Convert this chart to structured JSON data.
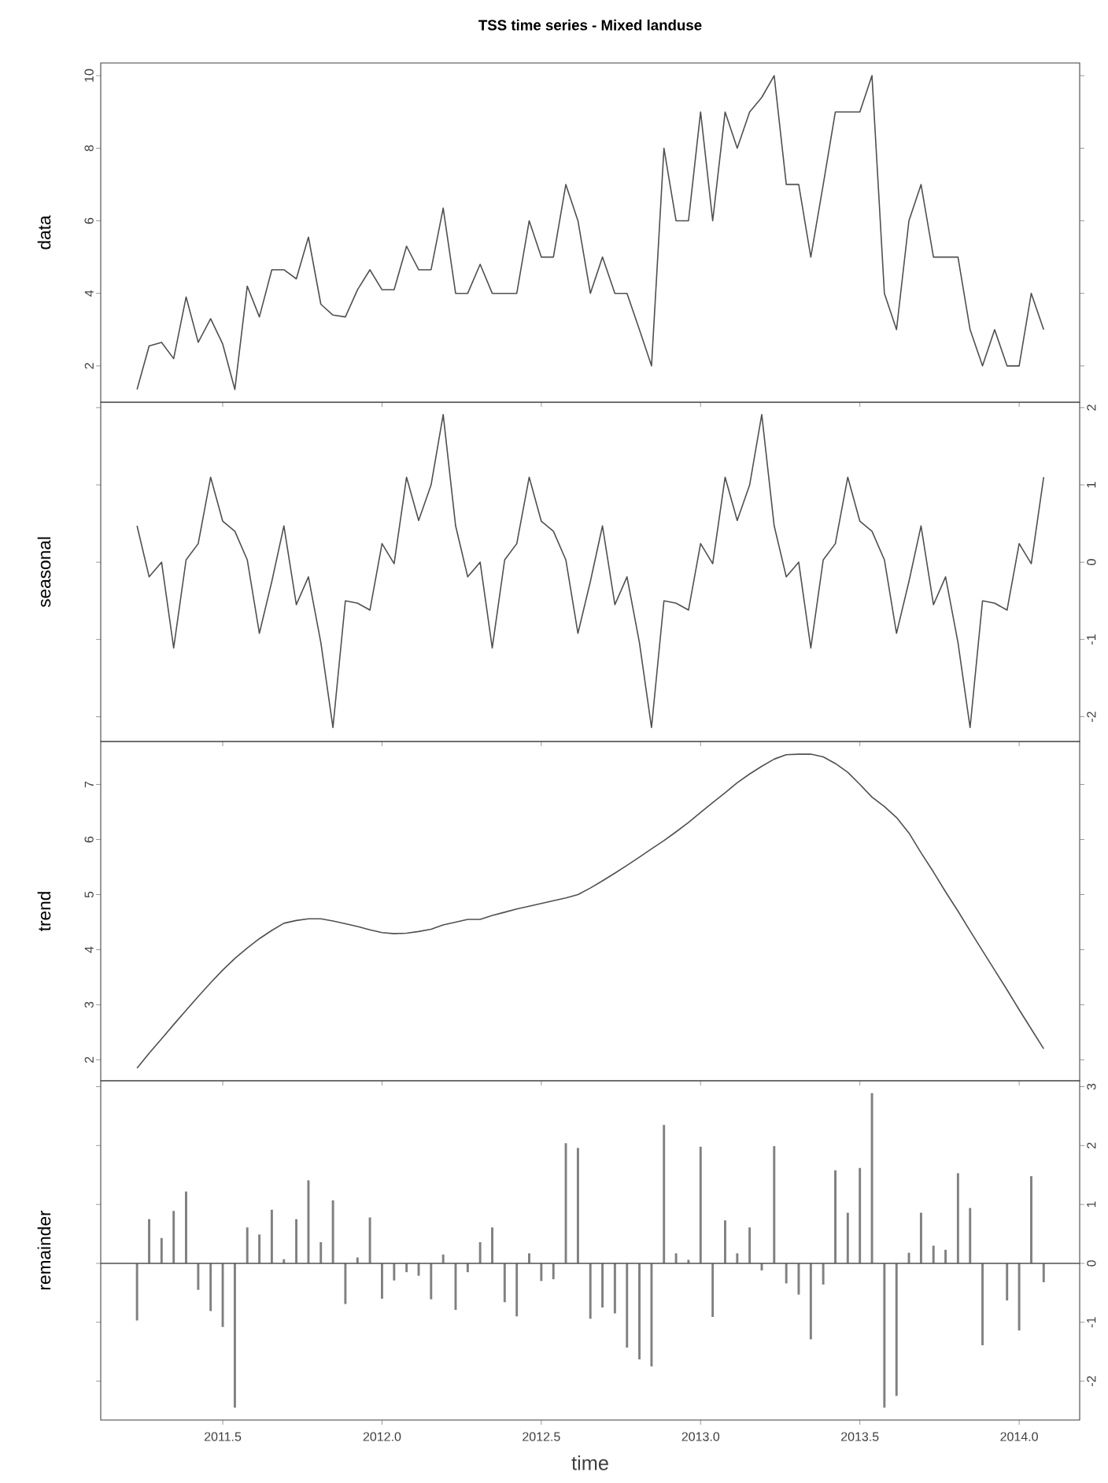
{
  "chart_data": [
    {
      "type": "line",
      "title": "TSS time series - Mixed landuse",
      "ylabel": "data",
      "color": "#505050",
      "tick_labels": "y",
      "xlim": [
        2011.117,
        2014.19
      ],
      "xticks": [
        2011.5,
        2012,
        2012.5,
        2013,
        2013.5,
        2014
      ],
      "ylim": [
        1.0,
        10.35
      ],
      "yticks": [
        2,
        4,
        6,
        8,
        10
      ],
      "x": [
        2011.231,
        2011.269,
        2011.308,
        2011.346,
        2011.385,
        2011.423,
        2011.462,
        2011.5,
        2011.538,
        2011.577,
        2011.615,
        2011.654,
        2011.692,
        2011.731,
        2011.769,
        2011.808,
        2011.846,
        2011.885,
        2011.923,
        2011.962,
        2012.0,
        2012.038,
        2012.077,
        2012.115,
        2012.154,
        2012.192,
        2012.231,
        2012.269,
        2012.308,
        2012.346,
        2012.385,
        2012.423,
        2012.462,
        2012.5,
        2012.538,
        2012.577,
        2012.615,
        2012.654,
        2012.692,
        2012.731,
        2012.769,
        2012.808,
        2012.846,
        2012.885,
        2012.923,
        2012.962,
        2013.0,
        2013.038,
        2013.077,
        2013.115,
        2013.154,
        2013.192,
        2013.231,
        2013.269,
        2013.308,
        2013.346,
        2013.385,
        2013.423,
        2013.462,
        2013.5,
        2013.538,
        2013.577,
        2013.615,
        2013.654,
        2013.692,
        2013.731,
        2013.769,
        2013.808,
        2013.846,
        2013.885,
        2013.923,
        2013.962,
        2014.0,
        2014.038,
        2014.077
      ],
      "values": [
        1.35,
        2.55,
        2.65,
        2.2,
        3.9,
        2.65,
        3.3,
        2.6,
        1.35,
        4.2,
        3.35,
        4.65,
        4.65,
        4.4,
        5.55,
        3.7,
        3.4,
        3.35,
        4.1,
        4.65,
        4.1,
        4.1,
        5.3,
        4.65,
        4.65,
        6.35,
        4.0,
        4.0,
        4.8,
        4.0,
        4.0,
        4.0,
        6.0,
        5.0,
        5.0,
        7.0,
        6.0,
        4.0,
        5.0,
        4.0,
        4.0,
        3.0,
        2.0,
        8.0,
        6.0,
        6.0,
        9.0,
        6.0,
        9.0,
        8.0,
        9.0,
        9.4,
        10.0,
        7.0,
        7.0,
        5.0,
        7.0,
        9.0,
        9.0,
        9.0,
        10.0,
        4.0,
        3.0,
        6.0,
        7.0,
        5.0,
        5.0,
        5.0,
        3.0,
        2.0,
        3.0,
        2.0,
        2.0,
        4.0,
        3.0
      ]
    },
    {
      "type": "line",
      "ylabel": "seasonal",
      "color": "#505050",
      "tick_labels": "y",
      "xlim": [
        2011.117,
        2014.19
      ],
      "xticks": [
        2011.5,
        2012,
        2012.5,
        2013,
        2013.5,
        2014
      ],
      "ylim": [
        -2.32,
        2.07
      ],
      "yticks": [
        -2,
        -1,
        0,
        1,
        2
      ],
      "x": [
        2011.231,
        2011.269,
        2011.308,
        2011.346,
        2011.385,
        2011.423,
        2011.462,
        2011.5,
        2011.538,
        2011.577,
        2011.615,
        2011.654,
        2011.692,
        2011.731,
        2011.769,
        2011.808,
        2011.846,
        2011.885,
        2011.923,
        2011.962,
        2012.0,
        2012.038,
        2012.077,
        2012.115,
        2012.154,
        2012.192,
        2012.231,
        2012.269,
        2012.308,
        2012.346,
        2012.385,
        2012.423,
        2012.462,
        2012.5,
        2012.538,
        2012.577,
        2012.615,
        2012.654,
        2012.692,
        2012.731,
        2012.769,
        2012.808,
        2012.846,
        2012.885,
        2012.923,
        2012.962,
        2013.0,
        2013.038,
        2013.077,
        2013.115,
        2013.154,
        2013.192,
        2013.231,
        2013.269,
        2013.308,
        2013.346,
        2013.385,
        2013.423,
        2013.462,
        2013.5,
        2013.538,
        2013.577,
        2013.615,
        2013.654,
        2013.692,
        2013.731,
        2013.769,
        2013.808,
        2013.846,
        2013.885,
        2013.923,
        2013.962,
        2014.0,
        2014.038,
        2014.077
      ],
      "values": [
        0.47,
        -0.19,
        0.0,
        -1.11,
        0.03,
        0.24,
        1.1,
        0.53,
        0.4,
        0.03,
        -0.92,
        -0.25,
        0.47,
        -0.55,
        -0.19,
        -1.04,
        -2.14,
        -0.5,
        -0.53,
        -0.62,
        0.24,
        -0.02,
        1.1,
        0.54,
        1.0,
        1.91,
        0.47,
        -0.19,
        0.0,
        -1.11,
        0.03,
        0.24,
        1.1,
        0.53,
        0.4,
        0.03,
        -0.92,
        -0.25,
        0.47,
        -0.55,
        -0.19,
        -1.04,
        -2.14,
        -0.5,
        -0.53,
        -0.62,
        0.24,
        -0.02,
        1.1,
        0.54,
        1.0,
        1.91,
        0.47,
        -0.19,
        0.0,
        -1.11,
        0.03,
        0.24,
        1.1,
        0.53,
        0.4,
        0.03,
        -0.92,
        -0.25,
        0.47,
        -0.55,
        -0.19,
        -1.04,
        -2.14,
        -0.5,
        -0.53,
        -0.62,
        0.24,
        -0.02,
        1.1
      ]
    },
    {
      "type": "line",
      "ylabel": "trend",
      "color": "#505050",
      "tick_labels": "y",
      "xlim": [
        2011.117,
        2014.19
      ],
      "xticks": [
        2011.5,
        2012,
        2012.5,
        2013,
        2013.5,
        2014
      ],
      "ylim": [
        1.62,
        7.78
      ],
      "yticks": [
        2,
        3,
        4,
        5,
        6,
        7
      ],
      "x": [
        2011.231,
        2011.269,
        2011.308,
        2011.346,
        2011.385,
        2011.423,
        2011.462,
        2011.5,
        2011.538,
        2011.577,
        2011.615,
        2011.654,
        2011.692,
        2011.731,
        2011.769,
        2011.808,
        2011.846,
        2011.885,
        2011.923,
        2011.962,
        2012.0,
        2012.038,
        2012.077,
        2012.115,
        2012.154,
        2012.192,
        2012.231,
        2012.269,
        2012.308,
        2012.346,
        2012.385,
        2012.423,
        2012.462,
        2012.5,
        2012.538,
        2012.577,
        2012.615,
        2012.654,
        2012.692,
        2012.731,
        2012.769,
        2012.808,
        2012.846,
        2012.885,
        2012.923,
        2012.962,
        2013.0,
        2013.038,
        2013.077,
        2013.115,
        2013.154,
        2013.192,
        2013.231,
        2013.269,
        2013.308,
        2013.346,
        2013.385,
        2013.423,
        2013.462,
        2013.5,
        2013.538,
        2013.577,
        2013.615,
        2013.654,
        2013.692,
        2013.731,
        2013.769,
        2013.808,
        2013.846,
        2013.885,
        2013.923,
        2013.962,
        2014.0,
        2014.038,
        2014.077
      ],
      "values": [
        1.85,
        2.12,
        2.38,
        2.64,
        2.9,
        3.15,
        3.4,
        3.63,
        3.84,
        4.03,
        4.2,
        4.35,
        4.48,
        4.53,
        4.56,
        4.56,
        4.52,
        4.47,
        4.42,
        4.36,
        4.31,
        4.29,
        4.3,
        4.33,
        4.37,
        4.45,
        4.5,
        4.55,
        4.55,
        4.62,
        4.68,
        4.74,
        4.79,
        4.84,
        4.89,
        4.94,
        5.0,
        5.12,
        5.25,
        5.39,
        5.53,
        5.68,
        5.83,
        5.98,
        6.14,
        6.31,
        6.49,
        6.67,
        6.85,
        7.03,
        7.19,
        7.33,
        7.46,
        7.54,
        7.55,
        7.55,
        7.5,
        7.38,
        7.22,
        7.0,
        6.77,
        6.6,
        6.4,
        6.12,
        5.76,
        5.41,
        5.05,
        4.7,
        4.34,
        3.98,
        3.63,
        3.27,
        2.91,
        2.56,
        2.2
      ]
    },
    {
      "type": "bar",
      "ylabel": "remainder",
      "xlabel": "time",
      "color": "#808080",
      "xlim": [
        2011.117,
        2014.19
      ],
      "xticks": [
        2011.5,
        {
          "value": 2012,
          "label": "2012.0"
        },
        2012.5,
        {
          "value": 2013,
          "label": "2013.0"
        },
        2013.5,
        {
          "value": 2014,
          "label": "2014.0"
        }
      ],
      "ylim": [
        -2.66,
        3.1
      ],
      "yticks": [
        -2,
        -1,
        0,
        1,
        2,
        3
      ],
      "ref_lines": [
        {
          "axis": "y",
          "value": 0,
          "color": "#505050"
        }
      ],
      "x": [
        2011.231,
        2011.269,
        2011.308,
        2011.346,
        2011.385,
        2011.423,
        2011.462,
        2011.5,
        2011.538,
        2011.577,
        2011.615,
        2011.654,
        2011.692,
        2011.731,
        2011.769,
        2011.808,
        2011.846,
        2011.885,
        2011.923,
        2011.962,
        2012.0,
        2012.038,
        2012.077,
        2012.115,
        2012.154,
        2012.192,
        2012.231,
        2012.269,
        2012.308,
        2012.346,
        2012.385,
        2012.423,
        2012.462,
        2012.5,
        2012.538,
        2012.577,
        2012.615,
        2012.654,
        2012.692,
        2012.731,
        2012.769,
        2012.808,
        2012.846,
        2012.885,
        2012.923,
        2012.962,
        2013.0,
        2013.038,
        2013.077,
        2013.115,
        2013.154,
        2013.192,
        2013.231,
        2013.269,
        2013.308,
        2013.346,
        2013.385,
        2013.423,
        2013.462,
        2013.5,
        2013.538,
        2013.577,
        2013.615,
        2013.654,
        2013.692,
        2013.731,
        2013.769,
        2013.808,
        2013.846,
        2013.885,
        2013.923,
        2013.962,
        2014.0,
        2014.038,
        2014.077
      ],
      "values": [
        -0.97,
        0.75,
        0.43,
        0.89,
        1.22,
        -0.45,
        -0.81,
        -1.08,
        -2.45,
        0.61,
        0.49,
        0.91,
        0.07,
        0.75,
        1.41,
        0.36,
        1.07,
        -0.69,
        0.1,
        0.78,
        -0.6,
        -0.29,
        -0.15,
        -0.21,
        -0.61,
        0.15,
        -0.79,
        -0.15,
        0.36,
        0.61,
        -0.66,
        -0.9,
        0.17,
        -0.3,
        -0.27,
        2.04,
        1.96,
        -0.94,
        -0.75,
        -0.85,
        -1.43,
        -1.63,
        -1.75,
        2.35,
        0.17,
        0.06,
        1.98,
        -0.91,
        0.73,
        0.17,
        0.61,
        -0.12,
        1.99,
        -0.34,
        -0.53,
        -1.29,
        -0.36,
        1.58,
        0.86,
        1.62,
        2.89,
        -2.45,
        -2.25,
        0.18,
        0.86,
        0.3,
        0.23,
        1.53,
        0.94,
        -1.39,
        null,
        -0.63,
        -1.14,
        1.48,
        -0.32
      ]
    }
  ]
}
